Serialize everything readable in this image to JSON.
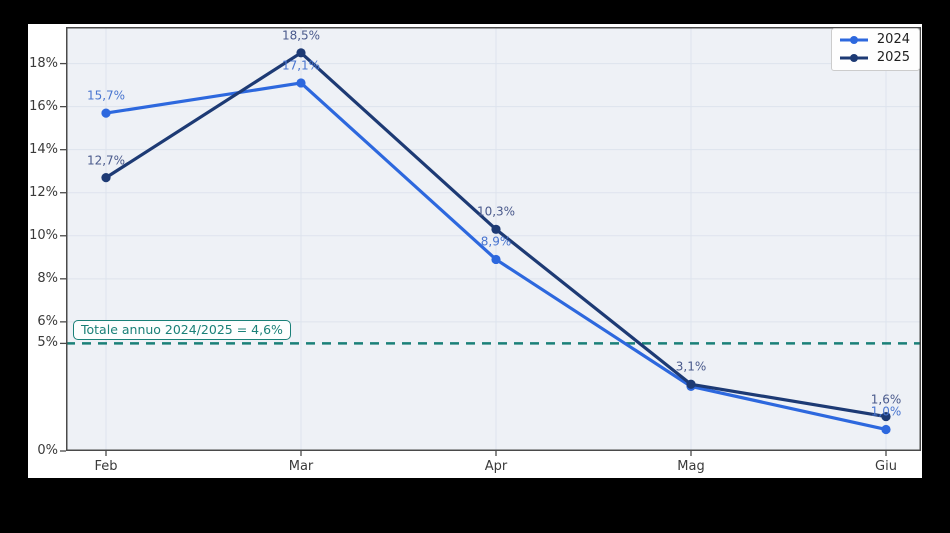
{
  "chart_data": {
    "type": "line",
    "title": "",
    "xlabel": "",
    "ylabel": "",
    "categories": [
      "Feb",
      "Mar",
      "Apr",
      "Mag",
      "Giu"
    ],
    "ylim": [
      0,
      19.7
    ],
    "grid": true,
    "legend_position": "top-right",
    "y_ticks": [
      {
        "value": 0,
        "label": "0%"
      },
      {
        "value": 5,
        "label": "5%"
      },
      {
        "value": 6,
        "label": "6%"
      },
      {
        "value": 8,
        "label": "8%"
      },
      {
        "value": 10,
        "label": "10%"
      },
      {
        "value": 12,
        "label": "12%"
      },
      {
        "value": 14,
        "label": "14%"
      },
      {
        "value": 16,
        "label": "16%"
      },
      {
        "value": 18,
        "label": "18%"
      }
    ],
    "series": [
      {
        "name": "2024",
        "color": "#2d68de",
        "label_color": "#4a76d0",
        "values": [
          15.7,
          17.1,
          8.9,
          3.0,
          1.0
        ],
        "point_labels": [
          "15,7%",
          "17,1%",
          "8,9%",
          "",
          "1,0%"
        ]
      },
      {
        "name": "2025",
        "color": "#1d3a74",
        "label_color": "#4a5a8c",
        "values": [
          12.7,
          18.5,
          10.3,
          3.1,
          1.6
        ],
        "point_labels": [
          "12,7%",
          "18,5%",
          "10,3%",
          "3,1%",
          "1,6%"
        ]
      }
    ],
    "reference_line": {
      "value": 5,
      "style": "dashed",
      "color": "#1a8078",
      "annotation": "Totale annuo 2024/2025 = 4,6%"
    }
  },
  "colors": {
    "page_background": "#000000",
    "figure_background": "#ffffff",
    "plot_background": "#eef1f6",
    "grid_line": "#dde3ed",
    "spine": "#4a4a4a",
    "tick_label": "#3a3a3a"
  }
}
